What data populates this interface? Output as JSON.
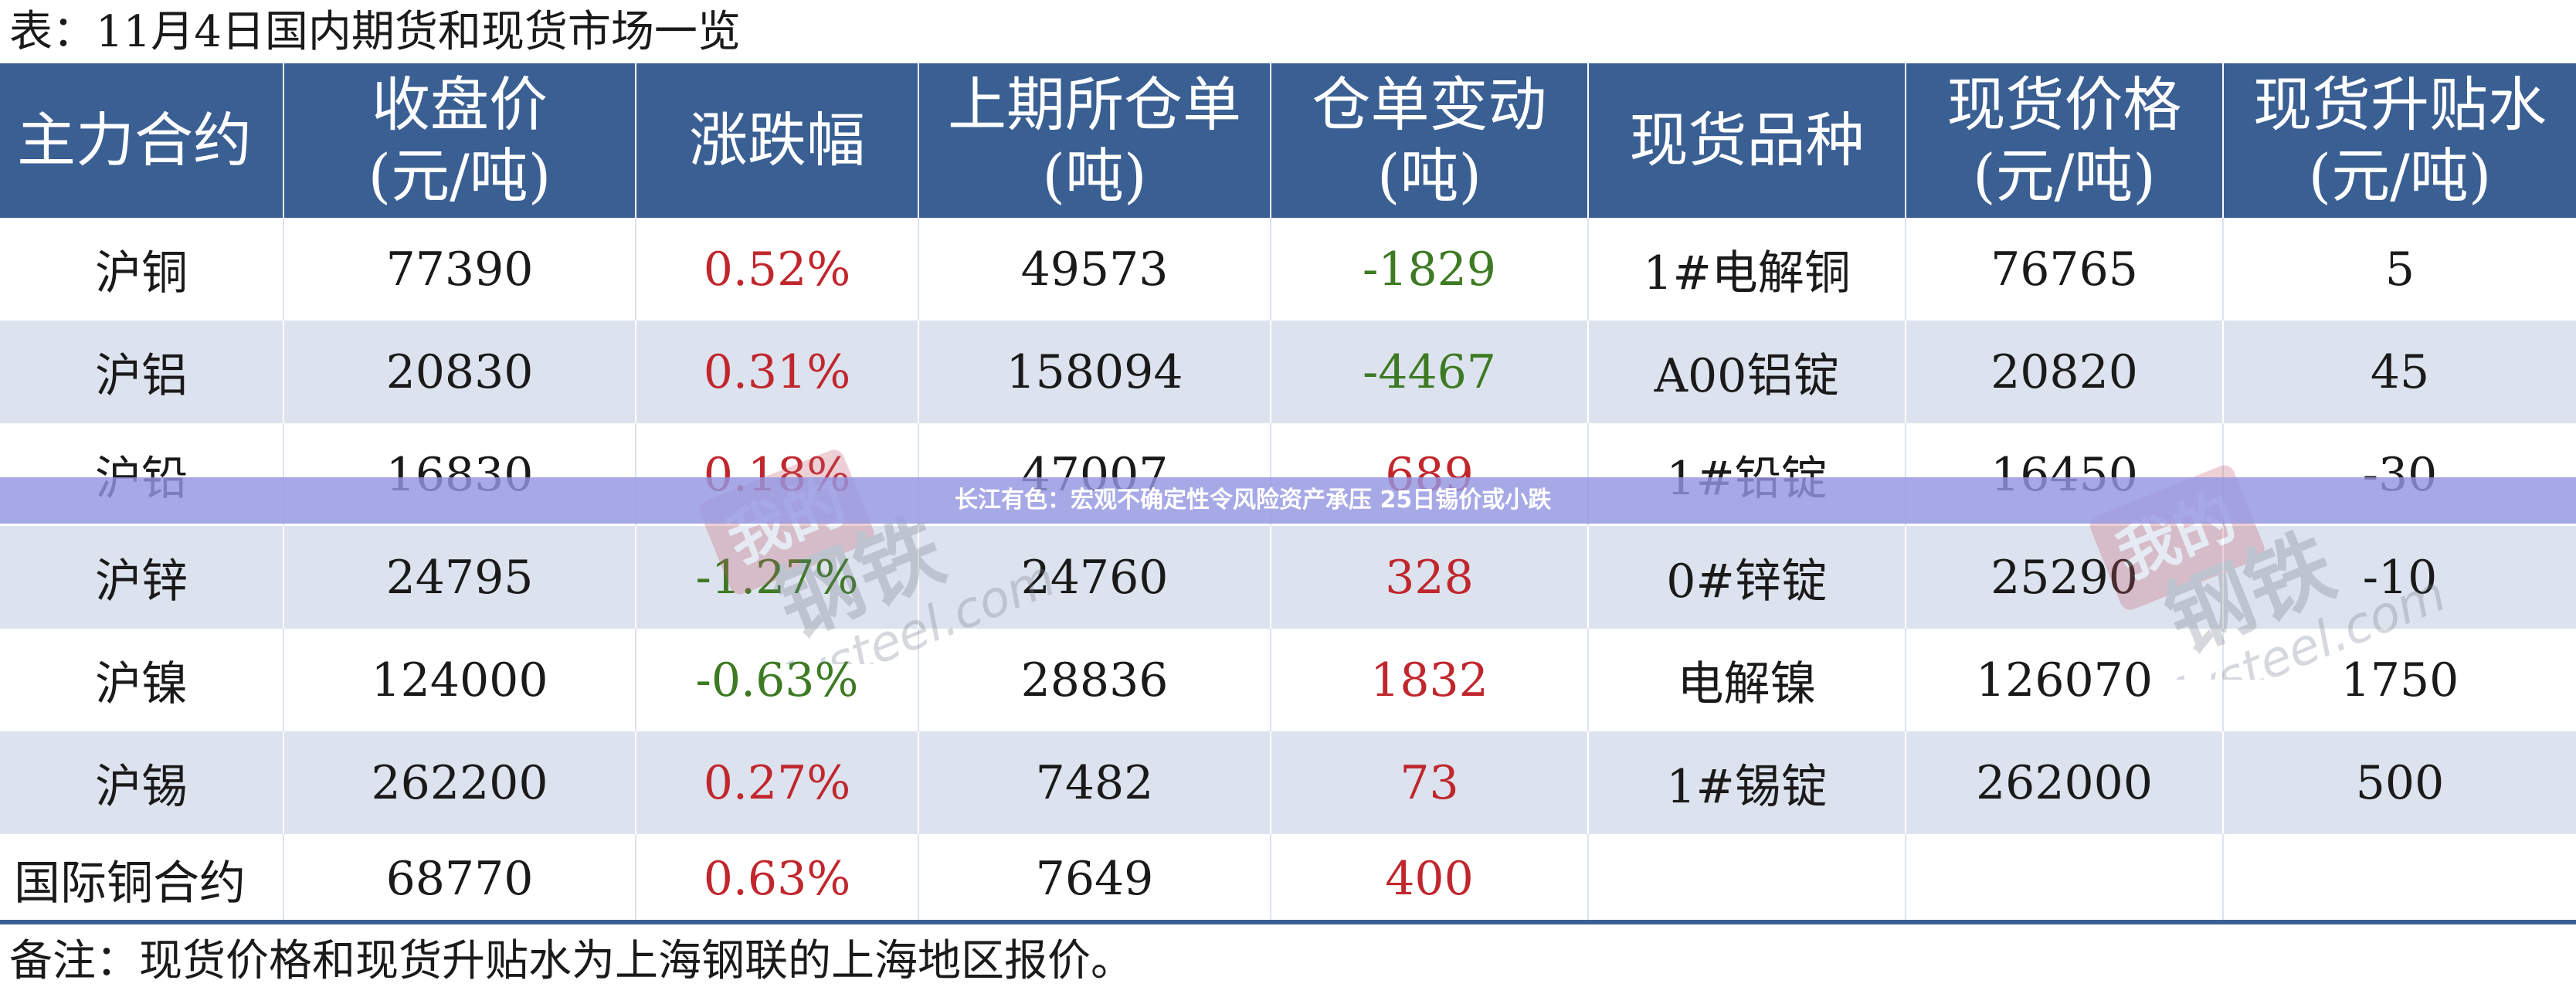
{
  "title": "表：11月4日国内期货和现货市场一览",
  "headers": [
    {
      "line1": "主力合约",
      "line2": ""
    },
    {
      "line1": "收盘价",
      "line2": "(元/吨)"
    },
    {
      "line1": "涨跌幅",
      "line2": ""
    },
    {
      "line1": "上期所仓单",
      "line2": "(吨)"
    },
    {
      "line1": "仓单变动",
      "line2": "(吨)"
    },
    {
      "line1": "现货品种",
      "line2": ""
    },
    {
      "line1": "现货价格",
      "line2": "(元/吨)"
    },
    {
      "line1": "现货升贴水",
      "line2": "(元/吨)"
    }
  ],
  "rows": [
    {
      "contract": "沪铜",
      "close": "77390",
      "change": "0.52%",
      "change_dir": "up",
      "warrant": "49573",
      "warrant_change": "-1829",
      "warrant_dir": "down",
      "spot_item": "1#电解铜",
      "spot_price": "76765",
      "basis": "5"
    },
    {
      "contract": "沪铝",
      "close": "20830",
      "change": "0.31%",
      "change_dir": "up",
      "warrant": "158094",
      "warrant_change": "-4467",
      "warrant_dir": "down",
      "spot_item": "A00铝锭",
      "spot_price": "20820",
      "basis": "45"
    },
    {
      "contract": "沪铅",
      "close": "16830",
      "change": "0.18%",
      "change_dir": "up",
      "warrant": "47007",
      "warrant_change": "689",
      "warrant_dir": "up",
      "spot_item": "1#铅锭",
      "spot_price": "16450",
      "basis": "-30"
    },
    {
      "contract": "沪锌",
      "close": "24795",
      "change": "-1.27%",
      "change_dir": "down",
      "warrant": "24760",
      "warrant_change": "328",
      "warrant_dir": "up",
      "spot_item": "0#锌锭",
      "spot_price": "25290",
      "basis": "-10"
    },
    {
      "contract": "沪镍",
      "close": "124000",
      "change": "-0.63%",
      "change_dir": "down",
      "warrant": "28836",
      "warrant_change": "1832",
      "warrant_dir": "up",
      "spot_item": "电解镍",
      "spot_price": "126070",
      "basis": "1750"
    },
    {
      "contract": "沪锡",
      "close": "262200",
      "change": "0.27%",
      "change_dir": "up",
      "warrant": "7482",
      "warrant_change": "73",
      "warrant_dir": "up",
      "spot_item": "1#锡锭",
      "spot_price": "262000",
      "basis": "500"
    },
    {
      "contract": "国际铜合约",
      "close": "68770",
      "change": "0.63%",
      "change_dir": "up",
      "warrant": "7649",
      "warrant_change": "400",
      "warrant_dir": "up",
      "spot_item": "",
      "spot_price": "",
      "basis": ""
    }
  ],
  "note": "备注：现货价格和现货升贴水为上海钢联的上海地区报价。",
  "banner": "长江有色：宏观不确定性令风险资产承压 25日锡价或小跌",
  "watermark": {
    "cn": "我的钢铁",
    "en": "Mysteel.com"
  },
  "colors": {
    "header_bg": "#3a5f93",
    "stripe_bg": "#dde3ee",
    "up": "#c0272d",
    "down": "#3d7a23",
    "banner_bg": "#9496e2"
  }
}
